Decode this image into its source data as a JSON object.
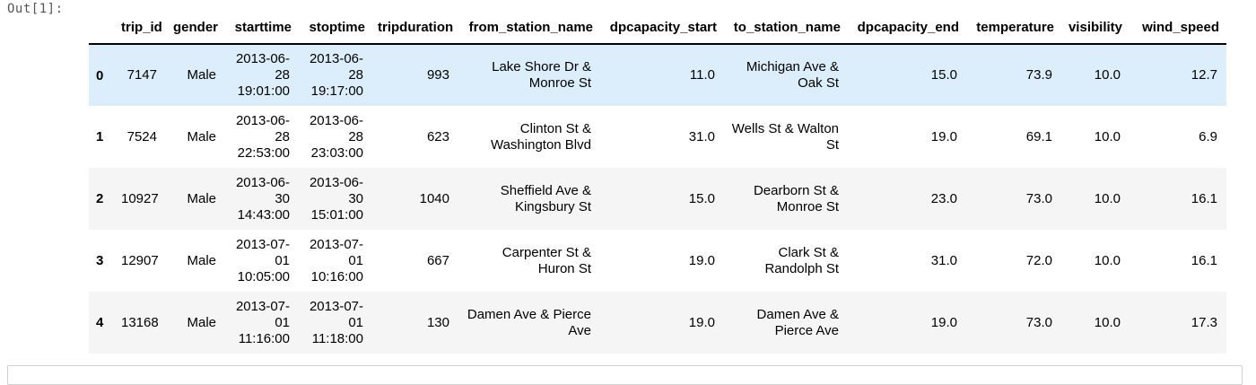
{
  "prompt": "Out[1]:",
  "columns": [
    "",
    "trip_id",
    "gender",
    "starttime",
    "stoptime",
    "tripduration",
    "from_station_name",
    "dpcapacity_start",
    "to_station_name",
    "dpcapacity_end",
    "temperature",
    "visibility",
    "wind_speed"
  ],
  "rows": [
    {
      "index": "0",
      "trip_id": "7147",
      "gender": "Male",
      "starttime": [
        "2013-06-",
        "28",
        "19:01:00"
      ],
      "stoptime": [
        "2013-06-",
        "28",
        "19:17:00"
      ],
      "tripduration": "993",
      "from_station_name": [
        "Lake Shore Dr &",
        "Monroe St"
      ],
      "dpcapacity_start": "11.0",
      "to_station_name": [
        "Michigan Ave &",
        "Oak St"
      ],
      "dpcapacity_end": "15.0",
      "temperature": "73.9",
      "visibility": "10.0",
      "wind_speed": "12.7"
    },
    {
      "index": "1",
      "trip_id": "7524",
      "gender": "Male",
      "starttime": [
        "2013-06-",
        "28",
        "22:53:00"
      ],
      "stoptime": [
        "2013-06-",
        "28",
        "23:03:00"
      ],
      "tripduration": "623",
      "from_station_name": [
        "Clinton St &",
        "Washington Blvd"
      ],
      "dpcapacity_start": "31.0",
      "to_station_name": [
        "Wells St & Walton",
        "St"
      ],
      "dpcapacity_end": "19.0",
      "temperature": "69.1",
      "visibility": "10.0",
      "wind_speed": "6.9"
    },
    {
      "index": "2",
      "trip_id": "10927",
      "gender": "Male",
      "starttime": [
        "2013-06-",
        "30",
        "14:43:00"
      ],
      "stoptime": [
        "2013-06-",
        "30",
        "15:01:00"
      ],
      "tripduration": "1040",
      "from_station_name": [
        "Sheffield Ave &",
        "Kingsbury St"
      ],
      "dpcapacity_start": "15.0",
      "to_station_name": [
        "Dearborn St &",
        "Monroe St"
      ],
      "dpcapacity_end": "23.0",
      "temperature": "73.0",
      "visibility": "10.0",
      "wind_speed": "16.1"
    },
    {
      "index": "3",
      "trip_id": "12907",
      "gender": "Male",
      "starttime": [
        "2013-07-",
        "01",
        "10:05:00"
      ],
      "stoptime": [
        "2013-07-",
        "01",
        "10:16:00"
      ],
      "tripduration": "667",
      "from_station_name": [
        "Carpenter St &",
        "Huron St"
      ],
      "dpcapacity_start": "19.0",
      "to_station_name": [
        "Clark St &",
        "Randolph St"
      ],
      "dpcapacity_end": "31.0",
      "temperature": "72.0",
      "visibility": "10.0",
      "wind_speed": "16.1"
    },
    {
      "index": "4",
      "trip_id": "13168",
      "gender": "Male",
      "starttime": [
        "2013-07-",
        "01",
        "11:16:00"
      ],
      "stoptime": [
        "2013-07-",
        "01",
        "11:18:00"
      ],
      "tripduration": "130",
      "from_station_name": [
        "Damen Ave & Pierce",
        "Ave"
      ],
      "dpcapacity_start": "19.0",
      "to_station_name": [
        "Damen Ave &",
        "Pierce Ave"
      ],
      "dpcapacity_end": "19.0",
      "temperature": "73.0",
      "visibility": "10.0",
      "wind_speed": "17.3"
    }
  ],
  "hovered_row": "0",
  "colors": {
    "hover_row": "#dceefb",
    "stripe_row": "#f5f5f5",
    "prompt_text": "#555555"
  }
}
